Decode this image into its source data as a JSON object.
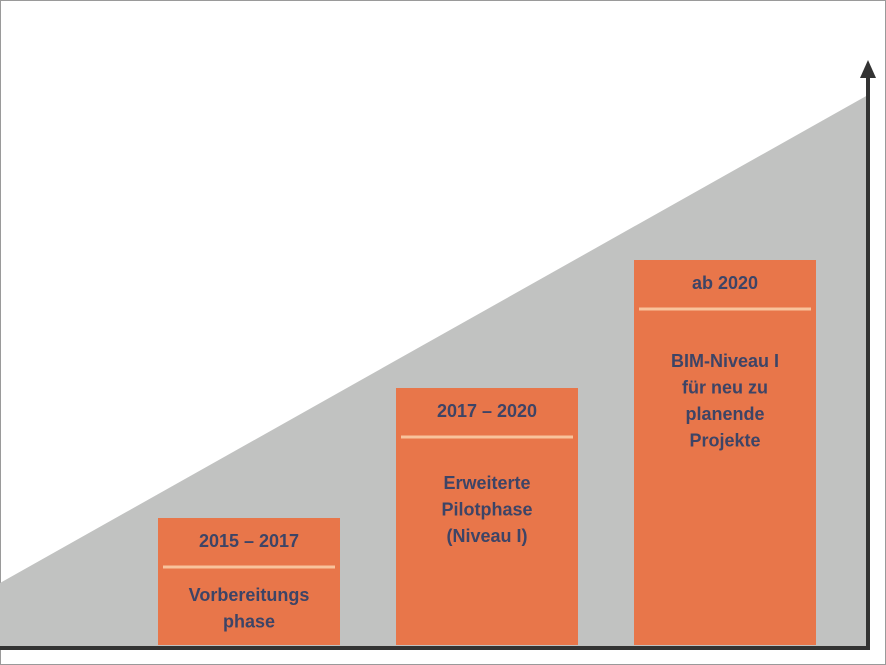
{
  "phases": [
    {
      "period": "2015 – 2017",
      "lines": [
        "Vorbereitungs",
        "phase"
      ]
    },
    {
      "period": "2017 – 2020",
      "lines": [
        "Erweiterte",
        "Pilotphase",
        "(Niveau I)"
      ]
    },
    {
      "period": "ab 2020",
      "lines": [
        "BIM-Niveau I",
        "für neu zu",
        "planende",
        "Projekte"
      ]
    }
  ]
}
